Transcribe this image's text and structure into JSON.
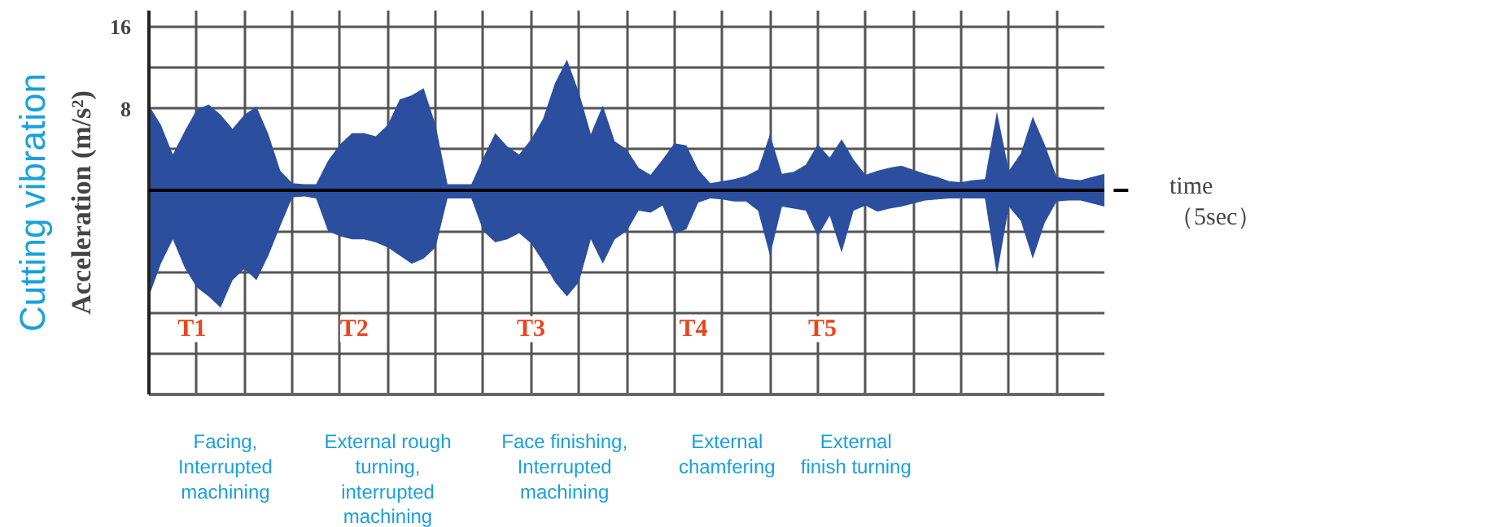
{
  "chart_data": {
    "type": "area",
    "title": "Cutting vibration",
    "xlabel": "time\n（5sec）",
    "ylabel": "Acceleration (m/s²)",
    "categories": [
      null,
      null,
      null,
      null,
      null,
      null,
      null,
      null,
      null,
      null,
      null,
      null,
      null,
      null,
      null,
      null,
      null,
      null,
      null,
      null,
      null,
      null,
      null,
      null,
      null,
      null,
      null,
      null,
      null,
      null,
      null,
      null,
      null,
      null,
      null,
      null,
      null,
      null,
      null,
      null,
      null,
      null,
      null,
      null,
      null,
      null,
      null,
      null,
      null,
      null,
      null,
      null,
      null,
      null,
      null,
      null,
      null,
      null,
      null,
      null,
      null,
      null,
      null,
      null,
      null,
      null,
      null,
      null,
      null,
      null,
      null,
      null,
      null,
      null,
      null,
      null,
      null,
      null,
      null,
      null,
      null
    ],
    "series": [
      {
        "color": "#2b4e9f",
        "values": [
          8.3,
          6.4,
          3.5,
          5.8,
          7.9,
          8.4,
          7.4,
          6.0,
          7.4,
          8.2,
          5.5,
          1.9,
          0.7,
          0.6,
          0.6,
          2.9,
          4.5,
          5.6,
          5.6,
          5.3,
          6.4,
          8.9,
          9.3,
          10,
          6.4,
          0.6,
          0.6,
          0.6,
          3.2,
          5.6,
          4.3,
          3.5,
          5,
          7,
          10.5,
          12.8,
          9.6,
          5.5,
          8.3,
          4.8,
          4.0,
          2.2,
          1.5,
          3,
          4.6,
          4.4,
          2,
          0.7,
          0.9,
          1.1,
          1.4,
          2,
          5.5,
          1.6,
          1.8,
          2.5,
          4.5,
          3.2,
          5,
          3,
          1.5,
          1.9,
          2.2,
          2.4,
          2,
          1.6,
          1.3,
          0.9,
          0.8,
          1,
          1.1,
          7.7,
          1.9,
          3.6,
          7.2,
          4.5,
          1.3,
          1.1,
          1,
          1.3,
          1.6
        ]
      },
      {
        "color": "#2b4e9f",
        "values": [
          -10.4,
          -7.2,
          -4.8,
          -7.6,
          -9.5,
          -10.4,
          -11.5,
          -8.8,
          -7.7,
          -8.8,
          -6.4,
          -3.5,
          -0.7,
          -0.6,
          -0.8,
          -4,
          -4.5,
          -4.8,
          -4.8,
          -5.1,
          -5.6,
          -6.4,
          -7.2,
          -6.7,
          -5.6,
          -0.8,
          -0.8,
          -0.8,
          -4,
          -5.1,
          -4.8,
          -4.2,
          -5.2,
          -7,
          -9,
          -10.4,
          -9,
          -4.8,
          -7.2,
          -4.8,
          -4,
          -2,
          -2.2,
          -1.5,
          -4.3,
          -3.8,
          -1.2,
          -0.8,
          -0.9,
          -1.1,
          -1.1,
          -2,
          -6.4,
          -1.6,
          -1.8,
          -2,
          -4.5,
          -2.5,
          -6.1,
          -2,
          -1.5,
          -2.1,
          -1.8,
          -1.6,
          -1.3,
          -1,
          -0.9,
          -0.8,
          -0.8,
          -0.8,
          -0.8,
          -8.3,
          -1.6,
          -3,
          -6.7,
          -3.2,
          -1.1,
          -1,
          -1,
          -1.3,
          -1.6
        ]
      }
    ],
    "ylim": [
      -20,
      17.6
    ],
    "yticks": [
      {
        "value": -20,
        "label": null
      },
      {
        "value": -16,
        "label": null
      },
      {
        "value": -12,
        "label": null
      },
      {
        "value": -8,
        "label": null
      },
      {
        "value": -4,
        "label": null
      },
      {
        "value": 0,
        "label": null
      },
      {
        "value": 4,
        "label": null
      },
      {
        "value": 8,
        "label": "8"
      },
      {
        "value": 12,
        "label": null
      },
      {
        "value": 16,
        "label": "16"
      }
    ],
    "tick_labels": "y",
    "grid": true,
    "annotations": [
      "T1",
      "T2",
      "T3",
      "T4",
      "T5",
      "Facing,\nInterrupted\nmachining",
      "External rough\nturning,\ninterrupted\nmachining",
      "Face finishing,\nInterrupted\nmachining",
      "External\nchamfering",
      "External\nfinish turning"
    ]
  }
}
